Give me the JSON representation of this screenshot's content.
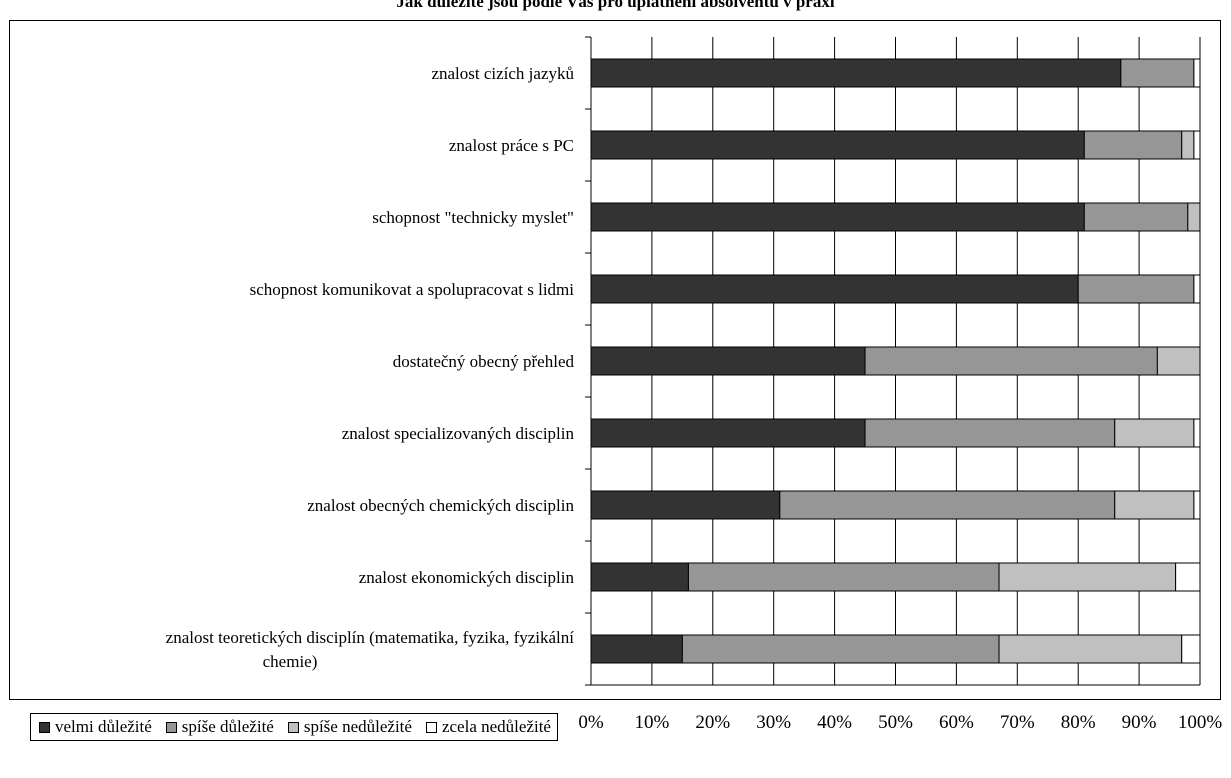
{
  "chart_data": {
    "type": "bar",
    "orientation": "horizontal",
    "stacked": "percent",
    "title": "Jak důležité jsou podle Vás pro uplatnění absolventů v praxi",
    "categories": [
      "znalost cizích jazyků",
      "znalost práce s PC",
      "schopnost \"technicky myslet\"",
      "schopnost komunikovat a spolupracovat s lidmi",
      "dostatečný obecný přehled",
      "znalost specializovaných disciplin ",
      "znalost obecných chemických disciplin",
      "znalost ekonomických disciplin",
      "znalost teoretických disciplín (matematika, fyzika, fyzikální chemie)"
    ],
    "category_lines": [
      [
        "znalost cizích jazyků"
      ],
      [
        "znalost práce s PC"
      ],
      [
        "schopnost \"technicky myslet\""
      ],
      [
        "schopnost komunikovat a spolupracovat s lidmi"
      ],
      [
        "dostatečný obecný přehled"
      ],
      [
        "znalost specializovaných disciplin "
      ],
      [
        "znalost obecných chemických disciplin"
      ],
      [
        "znalost ekonomických disciplin"
      ],
      [
        "znalost teoretických disciplín (matematika, fyzika, fyzikální",
        "chemie)"
      ]
    ],
    "series": [
      {
        "name": "velmi důležité",
        "color": "#333333",
        "values": [
          87,
          81,
          81,
          80,
          45,
          45,
          31,
          16,
          15
        ]
      },
      {
        "name": "spíše důležité",
        "color": "#969696",
        "values": [
          12,
          16,
          17,
          19,
          48,
          41,
          55,
          51,
          52
        ]
      },
      {
        "name": "spíše nedůležité",
        "color": "#c0c0c0",
        "values": [
          0,
          2,
          2,
          0,
          7,
          13,
          13,
          29,
          30
        ]
      },
      {
        "name": "zcela nedůležité",
        "color": "#ffffff",
        "values": [
          1,
          1,
          0,
          1,
          0,
          1,
          1,
          4,
          3
        ]
      }
    ],
    "xlim": [
      0,
      100
    ],
    "xticks": [
      "0%",
      "10%",
      "20%",
      "30%",
      "40%",
      "50%",
      "60%",
      "70%",
      "80%",
      "90%",
      "100%"
    ],
    "grid": true,
    "legend_position": "bottom"
  }
}
